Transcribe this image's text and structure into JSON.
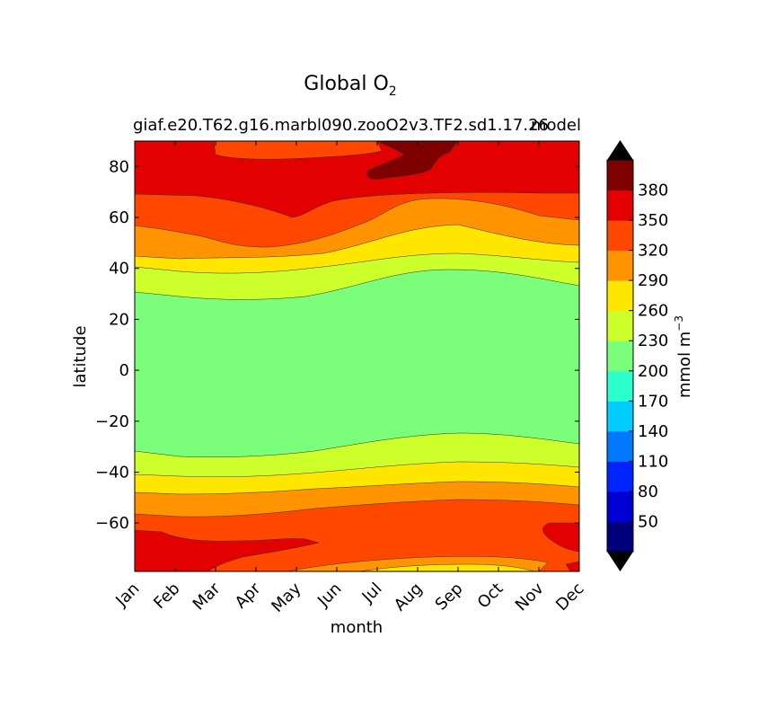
{
  "chart_data": {
    "type": "heatmap",
    "subtype": "filled-contour",
    "title": "Global O",
    "title_subscript": "2",
    "subtitle_left": "giaf.e20.T62.g16.marbl090.zooO2v3.TF2.sd1.17.26",
    "subtitle_right": "model",
    "xlabel": "month",
    "ylabel": "latitude",
    "x_ticks": [
      "Jan",
      "Feb",
      "Mar",
      "Apr",
      "May",
      "Jun",
      "Jul",
      "Aug",
      "Sep",
      "Oct",
      "Nov",
      "Dec"
    ],
    "y_ticks": [
      -60,
      -40,
      -20,
      0,
      20,
      40,
      60,
      80
    ],
    "ylim": [
      -79,
      90
    ],
    "xlim": [
      1,
      12
    ],
    "colorbar": {
      "label": "mmol m",
      "label_superscript": "−3",
      "ticks": [
        50,
        80,
        110,
        140,
        170,
        200,
        230,
        260,
        290,
        320,
        350,
        380
      ],
      "levels": [
        20,
        50,
        80,
        110,
        140,
        170,
        200,
        230,
        260,
        290,
        320,
        350,
        380,
        410
      ],
      "colors": [
        "#00007f",
        "#0000d2",
        "#0024ff",
        "#0078ff",
        "#00ccff",
        "#2affcd",
        "#7bff7b",
        "#cdff2a",
        "#ffe600",
        "#ff9400",
        "#ff4700",
        "#e20000",
        "#7f0000"
      ],
      "extend_low_color": "#000000",
      "extend_high_color": "#000000"
    },
    "grid": false
  }
}
